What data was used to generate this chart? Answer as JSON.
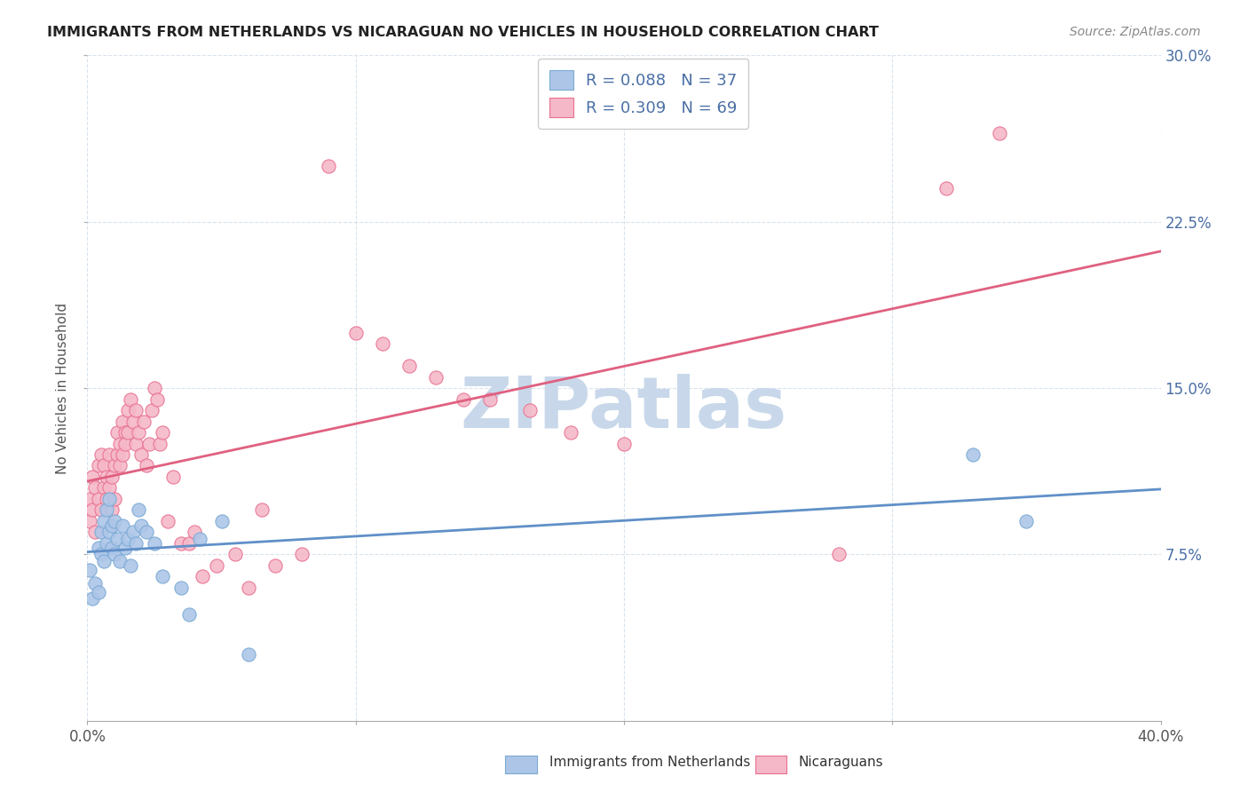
{
  "title": "IMMIGRANTS FROM NETHERLANDS VS NICARAGUAN NO VEHICLES IN HOUSEHOLD CORRELATION CHART",
  "source": "Source: ZipAtlas.com",
  "ylabel": "No Vehicles in Household",
  "xlim": [
    0.0,
    0.4
  ],
  "ylim": [
    0.0,
    0.3
  ],
  "xtick_values": [
    0.0,
    0.1,
    0.2,
    0.3,
    0.4
  ],
  "xtick_labels_show": [
    "0.0%",
    "",
    "",
    "",
    "40.0%"
  ],
  "ytick_values": [
    0.075,
    0.15,
    0.225,
    0.3
  ],
  "ytick_labels": [
    "7.5%",
    "15.0%",
    "22.5%",
    "30.0%"
  ],
  "legend_labels": [
    "Immigrants from Netherlands",
    "Nicaraguans"
  ],
  "blue_R": "R = 0.088",
  "blue_N": "N = 37",
  "pink_R": "R = 0.309",
  "pink_N": "N = 69",
  "blue_color": "#adc6e8",
  "pink_color": "#f5b8c8",
  "blue_edge_color": "#7aaad4",
  "pink_edge_color": "#e87090",
  "blue_line_color": "#6090c8",
  "pink_line_color": "#e06080",
  "legend_text_color": "#4a6fa5",
  "watermark": "ZIPatlas",
  "watermark_color": "#c8d8ea",
  "blue_scatter_x": [
    0.001,
    0.002,
    0.003,
    0.004,
    0.004,
    0.005,
    0.005,
    0.006,
    0.006,
    0.007,
    0.007,
    0.008,
    0.008,
    0.009,
    0.009,
    0.01,
    0.01,
    0.011,
    0.012,
    0.013,
    0.014,
    0.015,
    0.016,
    0.017,
    0.018,
    0.019,
    0.02,
    0.022,
    0.025,
    0.028,
    0.035,
    0.038,
    0.042,
    0.05,
    0.06,
    0.33,
    0.35
  ],
  "blue_scatter_y": [
    0.068,
    0.055,
    0.062,
    0.078,
    0.058,
    0.075,
    0.085,
    0.09,
    0.072,
    0.08,
    0.095,
    0.085,
    0.1,
    0.088,
    0.078,
    0.09,
    0.075,
    0.082,
    0.072,
    0.088,
    0.078,
    0.082,
    0.07,
    0.085,
    0.08,
    0.095,
    0.088,
    0.085,
    0.08,
    0.065,
    0.06,
    0.048,
    0.082,
    0.09,
    0.03,
    0.12,
    0.09
  ],
  "pink_scatter_x": [
    0.001,
    0.001,
    0.002,
    0.002,
    0.003,
    0.003,
    0.004,
    0.004,
    0.005,
    0.005,
    0.006,
    0.006,
    0.007,
    0.007,
    0.008,
    0.008,
    0.009,
    0.009,
    0.01,
    0.01,
    0.011,
    0.011,
    0.012,
    0.012,
    0.013,
    0.013,
    0.014,
    0.014,
    0.015,
    0.015,
    0.016,
    0.017,
    0.018,
    0.018,
    0.019,
    0.02,
    0.021,
    0.022,
    0.023,
    0.024,
    0.025,
    0.026,
    0.027,
    0.028,
    0.03,
    0.032,
    0.035,
    0.038,
    0.04,
    0.043,
    0.048,
    0.055,
    0.06,
    0.065,
    0.07,
    0.08,
    0.09,
    0.1,
    0.11,
    0.12,
    0.13,
    0.14,
    0.15,
    0.165,
    0.18,
    0.2,
    0.28,
    0.32,
    0.34
  ],
  "pink_scatter_y": [
    0.09,
    0.1,
    0.095,
    0.11,
    0.085,
    0.105,
    0.1,
    0.115,
    0.095,
    0.12,
    0.105,
    0.115,
    0.1,
    0.11,
    0.105,
    0.12,
    0.095,
    0.11,
    0.1,
    0.115,
    0.12,
    0.13,
    0.125,
    0.115,
    0.135,
    0.12,
    0.13,
    0.125,
    0.14,
    0.13,
    0.145,
    0.135,
    0.125,
    0.14,
    0.13,
    0.12,
    0.135,
    0.115,
    0.125,
    0.14,
    0.15,
    0.145,
    0.125,
    0.13,
    0.09,
    0.11,
    0.08,
    0.08,
    0.085,
    0.065,
    0.07,
    0.075,
    0.06,
    0.095,
    0.07,
    0.075,
    0.25,
    0.175,
    0.17,
    0.16,
    0.155,
    0.145,
    0.145,
    0.14,
    0.13,
    0.125,
    0.075,
    0.24,
    0.265
  ]
}
